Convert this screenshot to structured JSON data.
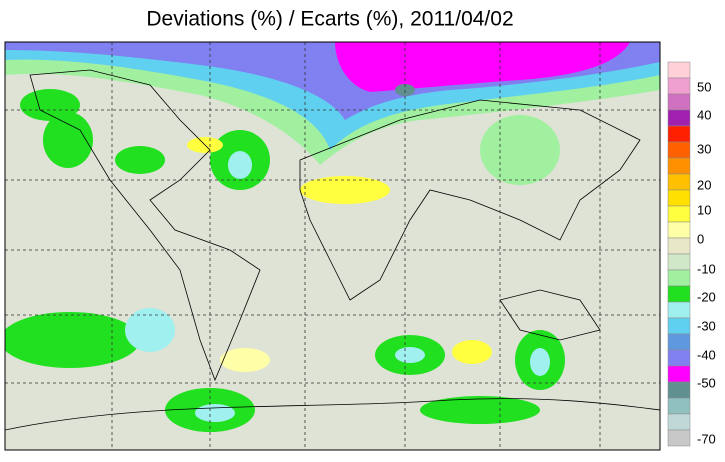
{
  "title": "Deviations (%) / Ecarts (%), 2011/04/02",
  "colorbar": {
    "labels": [
      50,
      40,
      30,
      20,
      10,
      0,
      -10,
      -20,
      -30,
      -40,
      -50,
      -70
    ],
    "colors": [
      "#ffd0d8",
      "#f0a0d0",
      "#d070c0",
      "#a020b0",
      "#ff2000",
      "#ff6000",
      "#ff9000",
      "#ffc000",
      "#ffe000",
      "#ffff40",
      "#ffffa8",
      "#e8e8c8",
      "#d0e8c8",
      "#a0f0a0",
      "#20e020",
      "#a0f0f0",
      "#60d0f0",
      "#6098e0",
      "#8080f0",
      "#ff00ff",
      "#609090",
      "#90c0c0",
      "#c0d8d8",
      "#c8c8c8"
    ]
  }
}
